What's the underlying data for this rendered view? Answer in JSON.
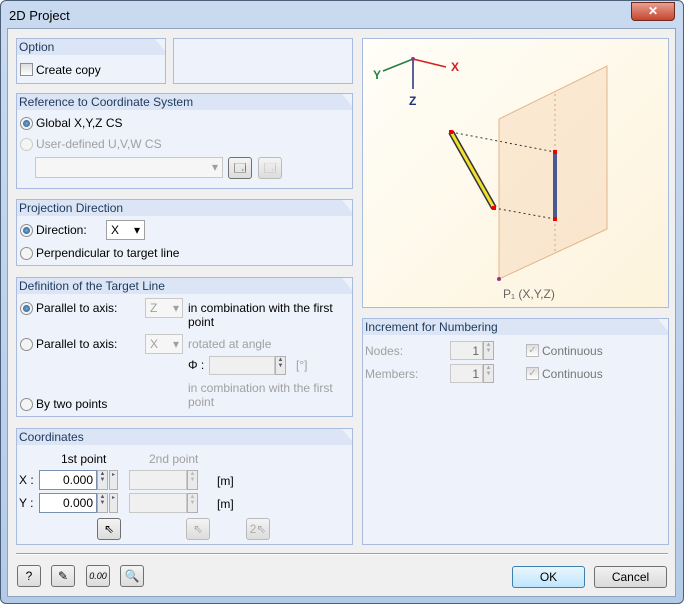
{
  "window": {
    "title": "2D Project",
    "close": "✕"
  },
  "option": {
    "header": "Option",
    "create_copy": "Create copy",
    "create_copy_checked": false
  },
  "reference": {
    "header": "Reference to Coordinate System",
    "global": "Global X,Y,Z CS",
    "user_defined": "User-defined U,V,W CS",
    "selected": "global",
    "cs_select": ""
  },
  "projection": {
    "header": "Projection Direction",
    "direction_label": "Direction:",
    "direction_value": "X",
    "perpendicular": "Perpendicular to target line",
    "selected": "direction"
  },
  "target_line": {
    "header": "Definition of the Target Line",
    "parallel1_label": "Parallel to axis:",
    "parallel1_axis": "Z",
    "parallel1_suffix": "in combination with the first point",
    "parallel2_label": "Parallel to axis:",
    "parallel2_axis": "X",
    "parallel2_suffix": "rotated at angle",
    "phi_label": "Φ :",
    "phi_value": "",
    "phi_unit": "[°]",
    "parallel2_suffix2": "in combination with the first point",
    "two_points": "By two points",
    "selected": "parallel1"
  },
  "coordinates": {
    "header": "Coordinates",
    "col1": "1st point",
    "col2": "2nd point",
    "rows": [
      {
        "label": "X :",
        "p1": "0.000",
        "p2": "",
        "unit": "[m]"
      },
      {
        "label": "Y :",
        "p1": "0.000",
        "p2": "",
        "unit": "[m]"
      }
    ]
  },
  "preview": {
    "axis_x": "X",
    "axis_y": "Y",
    "axis_z": "Z",
    "point_label": "P₁ (X,Y,Z)"
  },
  "increment": {
    "header": "Increment for Numbering",
    "nodes_label": "Nodes:",
    "nodes_value": "1",
    "members_label": "Members:",
    "members_value": "1",
    "continuous": "Continuous",
    "nodes_continuous": true,
    "members_continuous": true
  },
  "footer": {
    "ok": "OK",
    "cancel": "Cancel"
  }
}
